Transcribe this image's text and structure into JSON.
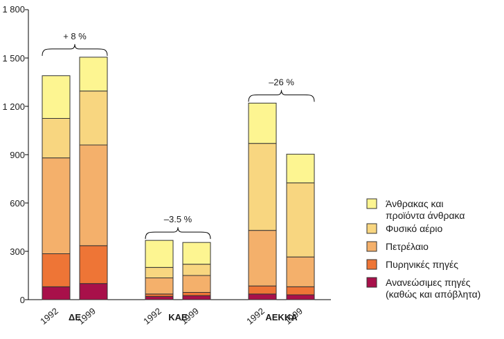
{
  "chart_data": {
    "type": "bar",
    "stacked": true,
    "groups": [
      {
        "name": "ΔΕ",
        "change": "+ 8 %"
      },
      {
        "name": "ΚΑΕ",
        "change": "–3.5 %"
      },
      {
        "name": "ΑΕΚΚΑ",
        "change": "–26 %"
      }
    ],
    "years": [
      "1992",
      "1999"
    ],
    "categories": [
      "1992",
      "1999",
      "1992",
      "1999",
      "1992",
      "1999"
    ],
    "series": [
      {
        "name": "Ανανεώσιμες πηγές (καθώς και απόβλητα)",
        "color": "#a8104a",
        "values": [
          80,
          100,
          20,
          25,
          35,
          30
        ]
      },
      {
        "name": "Πυρηνικές πηγές",
        "color": "#ee7536",
        "values": [
          205,
          235,
          15,
          20,
          50,
          50
        ]
      },
      {
        "name": "Πετρέλαιο",
        "color": "#f4b06b",
        "values": [
          595,
          625,
          100,
          105,
          345,
          185
        ]
      },
      {
        "name": "Φυσικό αέριο",
        "color": "#f8d680",
        "values": [
          245,
          335,
          65,
          70,
          540,
          460
        ]
      },
      {
        "name": "Άνθρακας και προϊόντα άνθρακα",
        "color": "#fdf591",
        "values": [
          265,
          210,
          168,
          135,
          250,
          178
        ]
      }
    ],
    "legend_order": [
      4,
      3,
      2,
      1,
      0
    ],
    "ylim": [
      0,
      1800
    ],
    "yticks": [
      "0",
      "300",
      "600",
      "900",
      "1 200",
      "1 500",
      "1 800"
    ],
    "ytick_values": [
      0,
      300,
      600,
      900,
      1200,
      1500,
      1800
    ],
    "legend_position": "right",
    "grid": false
  }
}
